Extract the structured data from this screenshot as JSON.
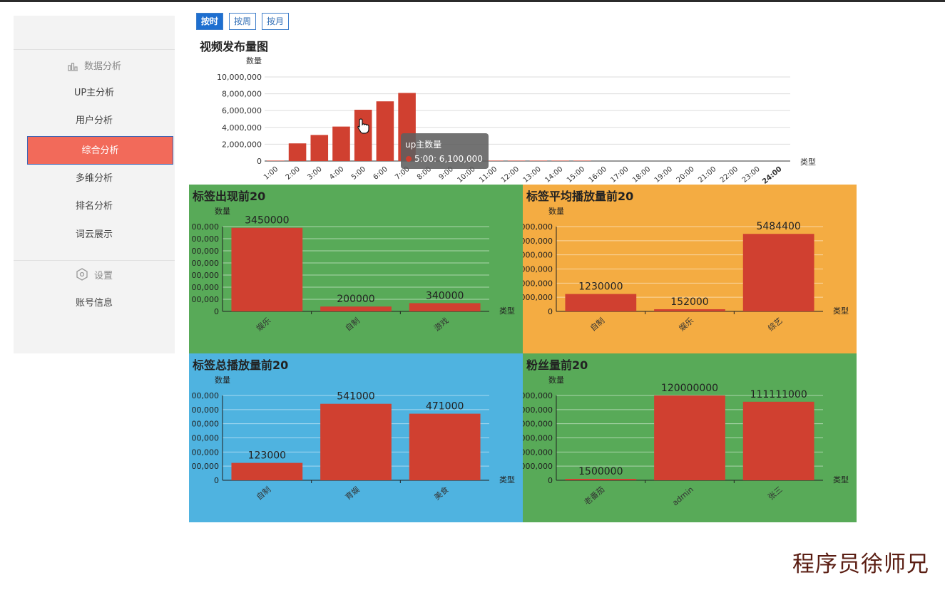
{
  "sidebar": {
    "group1": "数据分析",
    "items": [
      "UP主分析",
      "用户分析",
      "综合分析",
      "多维分析",
      "排名分析",
      "词云展示"
    ],
    "active_index": 2,
    "group2": "设置",
    "items2": [
      "账号信息"
    ]
  },
  "buttons": [
    "按时",
    "按周",
    "按月"
  ],
  "active_button": 0,
  "colors": {
    "bar": "#d04030",
    "active_item": "#f26a5a",
    "green": "#58aa58",
    "orange": "#f4ac42",
    "blue": "#4fb3e0"
  },
  "main_chart": {
    "title": "视频发布量图",
    "ylabel": "数量",
    "xlabel": "类型",
    "yticks": [
      "10,000,000",
      "8,000,000",
      "6,000,000",
      "4,000,000",
      "2,000,000",
      "0"
    ],
    "ylim": [
      0,
      10000000
    ],
    "categories": [
      "1:00",
      "2:00",
      "3:00",
      "4:00",
      "5:00",
      "6:00",
      "7:00",
      "8:00",
      "9:00",
      "10:00",
      "11:00",
      "12:00",
      "13:00",
      "14:00",
      "15:00",
      "16:00",
      "17:00",
      "18:00",
      "19:00",
      "20:00",
      "21:00",
      "22:00",
      "23:00",
      "24:00"
    ],
    "values": [
      50000,
      2100000,
      3100000,
      4100000,
      6100000,
      7100000,
      8100000,
      50000,
      50000,
      50000,
      50000,
      50000,
      50000,
      50000,
      50000,
      0,
      0,
      0,
      0,
      0,
      0,
      0,
      0,
      0
    ],
    "tooltip": {
      "title": "up主数量",
      "text": "5:00: 6,100,000"
    }
  },
  "chart_data": [
    {
      "type": "bar",
      "title": "标签出现前20",
      "ylabel": "数量",
      "xlabel": "类型",
      "categories": [
        "娱乐",
        "自制",
        "游戏"
      ],
      "values": [
        3450000,
        200000,
        340000
      ],
      "value_labels": [
        "3450000",
        "200000",
        "340000"
      ],
      "yticks": [
        "00,000",
        "00,000",
        "00,000",
        "00,000",
        "00,000",
        "00,000",
        "00,000",
        "0"
      ],
      "ylim": [
        0,
        3500000
      ],
      "background": "#58aa58"
    },
    {
      "type": "bar",
      "title": "标签平均播放量前20",
      "ylabel": "数量",
      "xlabel": "类型",
      "categories": [
        "自制",
        "娱乐",
        "综艺"
      ],
      "values": [
        1230000,
        152000,
        5484400
      ],
      "value_labels": [
        "1230000",
        "152000",
        "5484400"
      ],
      "yticks": [
        "000,000",
        "000,000",
        "000,000",
        "000,000",
        "000,000",
        "000,000",
        "0"
      ],
      "ylim": [
        0,
        6000000
      ],
      "background": "#f4ac42"
    },
    {
      "type": "bar",
      "title": "标签总播放量前20",
      "ylabel": "数量",
      "xlabel": "类型",
      "categories": [
        "自制",
        "育娱",
        "美食"
      ],
      "values": [
        123000,
        541000,
        471000
      ],
      "value_labels": [
        "123000",
        "541000",
        "471000"
      ],
      "yticks": [
        "00,000",
        "00,000",
        "00,000",
        "00,000",
        "00,000",
        "00,000",
        "0"
      ],
      "ylim": [
        0,
        600000
      ],
      "background": "#4fb3e0"
    },
    {
      "type": "bar",
      "title": "粉丝量前20",
      "ylabel": "数量",
      "xlabel": "类型",
      "categories": [
        "老番茄",
        "admin",
        "张三"
      ],
      "values": [
        1500000,
        120000000,
        111111000
      ],
      "value_labels": [
        "1500000",
        "120000000",
        "111111000"
      ],
      "yticks": [
        "000,000",
        "000,000",
        "000,000",
        "000,000",
        "000,000",
        "000,000",
        "0"
      ],
      "ylim": [
        0,
        120000000
      ],
      "background": "#58aa58"
    }
  ],
  "watermark": "程序员徐师兄"
}
